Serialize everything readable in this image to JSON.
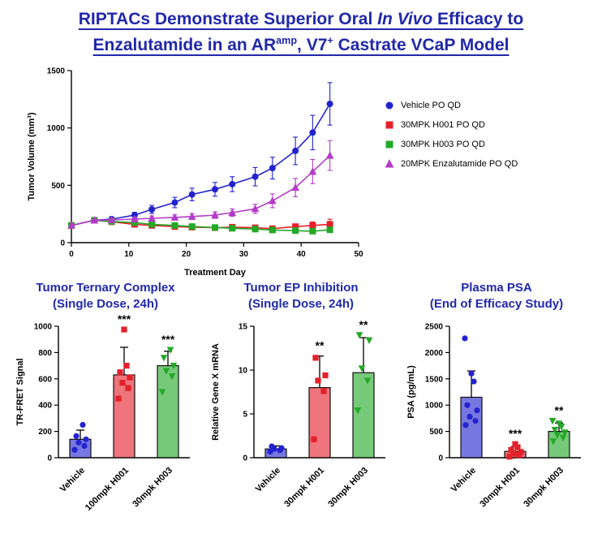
{
  "title": {
    "line1_part1": "RIPTACs Demonstrate Superior Oral ",
    "line1_italic": "In Vivo",
    "line1_part2": " Efficacy to",
    "line2_part1": "Enzalutamide in an AR",
    "line2_sup1": "amp",
    "line2_part2": ", V7",
    "line2_sup2": "+",
    "line2_part3": " Castrate VCaP Model",
    "color": "#2128A8"
  },
  "colors": {
    "vehicle_blue": "#2323CE",
    "h001_red": "#E4212B",
    "h003_green": "#23A828",
    "enzalutamide_magenta": "#B43BC8",
    "significance_black": "#000000"
  },
  "chart_data": [
    {
      "id": "tumor-volume-efficacy",
      "type": "line",
      "xlabel": "Treatment Day",
      "ylabel": "Tumor Volume (mm³)",
      "xlim": [
        0,
        50
      ],
      "ylim": [
        0,
        1500
      ],
      "xticks": [
        0,
        10,
        20,
        30,
        40,
        50
      ],
      "yticks": [
        0,
        500,
        1000,
        1500
      ],
      "grid": false,
      "legend_position": "right",
      "x": [
        0,
        4,
        7,
        11,
        14,
        18,
        21,
        25,
        28,
        32,
        35,
        39,
        42,
        45
      ],
      "series": [
        {
          "name": "Vehicle PO QD",
          "color": "#2323CE",
          "marker": "circle",
          "values": [
            150,
            195,
            205,
            240,
            290,
            350,
            420,
            465,
            510,
            575,
            650,
            800,
            960,
            1210
          ],
          "err": [
            15,
            15,
            20,
            25,
            35,
            45,
            55,
            60,
            65,
            80,
            95,
            120,
            150,
            185
          ]
        },
        {
          "name": "30MPK H001 PO QD",
          "color": "#E4212B",
          "marker": "square",
          "values": [
            150,
            195,
            182,
            160,
            150,
            140,
            135,
            130,
            135,
            130,
            122,
            140,
            150,
            160
          ],
          "err": [
            15,
            15,
            15,
            15,
            15,
            15,
            15,
            15,
            15,
            15,
            15,
            20,
            30,
            45
          ]
        },
        {
          "name": "30MPK H003 PO QD",
          "color": "#23A828",
          "marker": "square",
          "values": [
            150,
            195,
            185,
            175,
            160,
            150,
            140,
            132,
            125,
            118,
            110,
            105,
            100,
            112
          ],
          "err": [
            15,
            15,
            15,
            15,
            15,
            12,
            12,
            12,
            12,
            12,
            12,
            12,
            12,
            15
          ]
        },
        {
          "name": "20MPK Enzalutamide PO QD",
          "color": "#B43BC8",
          "marker": "triangle",
          "values": [
            150,
            195,
            198,
            205,
            212,
            220,
            228,
            240,
            262,
            295,
            365,
            480,
            620,
            760
          ],
          "err": [
            15,
            15,
            15,
            18,
            20,
            22,
            25,
            28,
            32,
            40,
            60,
            80,
            105,
            130
          ]
        }
      ]
    },
    {
      "id": "tumor-ternary-complex",
      "type": "bar",
      "title_line1": "Tumor Ternary Complex",
      "title_line2": "(Single Dose, 24h)",
      "ylabel": "TR-FRET Signal",
      "ylim": [
        0,
        1000
      ],
      "yticks": [
        0,
        200,
        400,
        600,
        800,
        1000
      ],
      "categories": [
        "Vehicle",
        "100mpk H001",
        "30mpk H003"
      ],
      "bars": [
        {
          "value": 140,
          "err": 70,
          "color": "#2323CE",
          "marker": "circle",
          "sig": "",
          "points": [
            60,
            90,
            115,
            140,
            165,
            250
          ]
        },
        {
          "value": 630,
          "err": 210,
          "color": "#E4212B",
          "marker": "square",
          "sig": "***",
          "points": [
            450,
            530,
            570,
            610,
            650,
            700,
            975
          ]
        },
        {
          "value": 700,
          "err": 110,
          "color": "#23A828",
          "marker": "triangle-down",
          "sig": "***",
          "points": [
            500,
            620,
            660,
            700,
            760,
            820
          ]
        }
      ]
    },
    {
      "id": "tumor-ep-inhibition",
      "type": "bar",
      "title_line1": "Tumor EP Inhibition",
      "title_line2": "(Single Dose, 24h)",
      "ylabel": "Relative Gene X mRNA",
      "ylim": [
        0,
        15
      ],
      "yticks": [
        0,
        5,
        10,
        15
      ],
      "categories": [
        "Vehicle",
        "30mpk H001",
        "30mpk H003"
      ],
      "bars": [
        {
          "value": 1.0,
          "err": 0.35,
          "color": "#2323CE",
          "marker": "circle",
          "sig": "",
          "points": [
            0.7,
            0.85,
            1.0,
            1.1,
            1.3
          ]
        },
        {
          "value": 8.0,
          "err": 3.6,
          "color": "#E4212B",
          "marker": "square",
          "sig": "**",
          "points": [
            2.1,
            7.6,
            8.8,
            9.4,
            11.4
          ]
        },
        {
          "value": 9.7,
          "err": 4.0,
          "color": "#23A828",
          "marker": "triangle-down",
          "sig": "**",
          "points": [
            5.4,
            8.8,
            10.2,
            13.4,
            14.0
          ]
        }
      ]
    },
    {
      "id": "plasma-psa",
      "type": "bar",
      "title_line1": "Plasma PSA",
      "title_line2": "(End of Efficacy Study)",
      "ylabel": "PSA (pg/mL)",
      "ylim": [
        0,
        2500
      ],
      "yticks": [
        0,
        500,
        1000,
        1500,
        2000,
        2500
      ],
      "categories": [
        "Vehicle",
        "30mpk H001",
        "30mpk H003"
      ],
      "bars": [
        {
          "value": 1150,
          "err": 500,
          "color": "#2323CE",
          "marker": "circle",
          "sig": "",
          "points": [
            620,
            700,
            780,
            900,
            1000,
            1450,
            1600,
            2270
          ]
        },
        {
          "value": 120,
          "err": 90,
          "color": "#E4212B",
          "marker": "square",
          "sig": "***",
          "points": [
            20,
            50,
            80,
            110,
            150,
            200,
            260
          ]
        },
        {
          "value": 500,
          "err": 160,
          "color": "#23A828",
          "marker": "triangle-down",
          "sig": "**",
          "points": [
            310,
            380,
            430,
            480,
            530,
            590,
            650,
            700
          ]
        }
      ]
    }
  ]
}
